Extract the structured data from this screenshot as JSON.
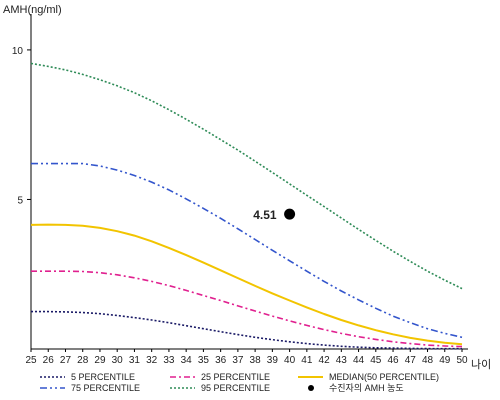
{
  "chart_data": {
    "type": "line",
    "ylabel": "AMH(ng/ml)",
    "xlabel": "나이",
    "xlim": [
      25,
      50
    ],
    "ylim": [
      0,
      11
    ],
    "x_ticks": [
      25,
      26,
      27,
      28,
      29,
      30,
      31,
      32,
      33,
      34,
      35,
      36,
      37,
      38,
      39,
      40,
      41,
      42,
      43,
      44,
      45,
      46,
      47,
      48,
      49,
      50
    ],
    "y_ticks": [
      5,
      10
    ],
    "grid": false,
    "legend_position": "bottom",
    "x": [
      25,
      26,
      27,
      28,
      29,
      30,
      31,
      32,
      33,
      34,
      35,
      36,
      37,
      38,
      39,
      40,
      41,
      42,
      43,
      44,
      45,
      46,
      47,
      48,
      49,
      50
    ],
    "series": [
      {
        "name": "5 PERCENTILE",
        "color": "#1a1a66",
        "dash": "2,2",
        "values": [
          1.25,
          1.25,
          1.24,
          1.22,
          1.18,
          1.12,
          1.05,
          0.97,
          0.88,
          0.78,
          0.68,
          0.58,
          0.48,
          0.39,
          0.31,
          0.24,
          0.18,
          0.13,
          0.09,
          0.06,
          0.04,
          0.03,
          0.02,
          0.015,
          0.01,
          0.01
        ]
      },
      {
        "name": "25 PERCENTILE",
        "color": "#e0208f",
        "dash": "6,3,2,3",
        "values": [
          2.6,
          2.6,
          2.6,
          2.59,
          2.55,
          2.48,
          2.38,
          2.26,
          2.12,
          1.96,
          1.79,
          1.62,
          1.44,
          1.27,
          1.1,
          0.94,
          0.79,
          0.65,
          0.52,
          0.41,
          0.32,
          0.24,
          0.18,
          0.13,
          0.1,
          0.08
        ]
      },
      {
        "name": "MEDIAN(50 PERCENTILE)",
        "color": "#f2c400",
        "dash": "",
        "values": [
          4.15,
          4.16,
          4.15,
          4.12,
          4.05,
          3.94,
          3.79,
          3.6,
          3.38,
          3.14,
          2.89,
          2.63,
          2.37,
          2.11,
          1.86,
          1.62,
          1.39,
          1.17,
          0.97,
          0.79,
          0.63,
          0.49,
          0.37,
          0.28,
          0.21,
          0.16
        ]
      },
      {
        "name": "75 PERCENTILE",
        "color": "#3355cc",
        "dash": "7,3,2,3,2,3",
        "values": [
          6.2,
          6.2,
          6.2,
          6.2,
          6.12,
          5.98,
          5.8,
          5.58,
          5.32,
          5.02,
          4.7,
          4.37,
          4.02,
          3.66,
          3.3,
          2.95,
          2.6,
          2.26,
          1.94,
          1.64,
          1.36,
          1.1,
          0.88,
          0.68,
          0.52,
          0.39
        ]
      },
      {
        "name": "95 PERCENTILE",
        "color": "#2e8b57",
        "dash": "2,2",
        "values": [
          9.55,
          9.45,
          9.33,
          9.18,
          9.0,
          8.8,
          8.57,
          8.3,
          8.0,
          7.68,
          7.35,
          7.0,
          6.65,
          6.28,
          5.9,
          5.52,
          5.14,
          4.76,
          4.38,
          4.0,
          3.63,
          3.27,
          2.93,
          2.6,
          2.3,
          2.02
        ]
      }
    ],
    "patient_point": {
      "name": "수진자의 AMH 농도",
      "x": 40,
      "y": 4.51,
      "label": "4.51",
      "color": "#000000"
    },
    "legend_order": [
      [
        "5 PERCENTILE",
        "25 PERCENTILE",
        "MEDIAN(50 PERCENTILE)"
      ],
      [
        "75 PERCENTILE",
        "95 PERCENTILE",
        "수진자의 AMH 농도"
      ]
    ]
  }
}
